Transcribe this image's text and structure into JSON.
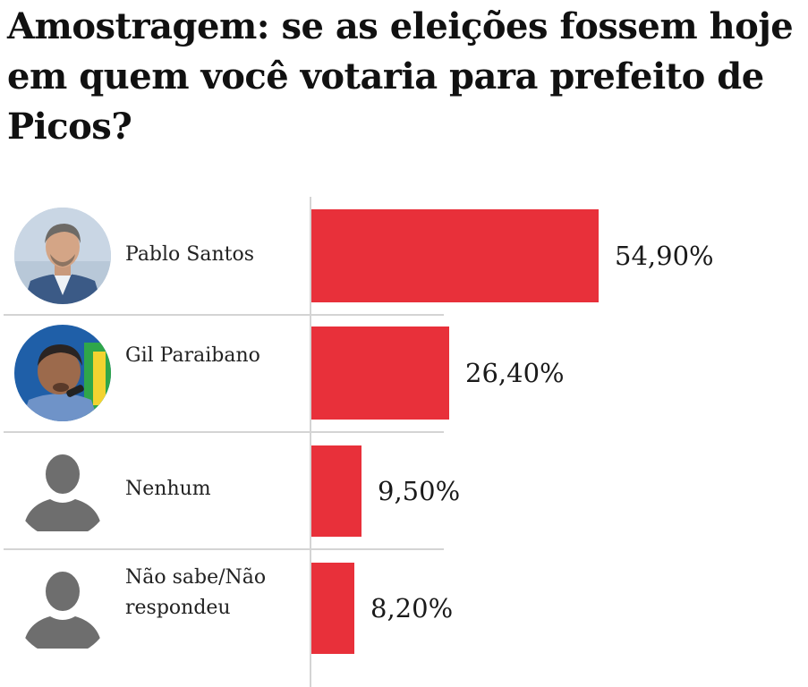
{
  "title": "Amostragem: se as eleições fossem hoje em quem você votaria para prefeito de Picos?",
  "colors": {
    "bar": "#e8303a",
    "divider": "#d4d4d4",
    "placeholder_avatar": "#6e6e6e"
  },
  "rows": [
    {
      "name": "Pablo Santos",
      "value_label": "54,90%",
      "avatar_icon": "candidate-photo-pablo-santos"
    },
    {
      "name": "Gil Paraibano",
      "value_label": "26,40%",
      "avatar_icon": "candidate-photo-gil-paraibano"
    },
    {
      "name": "Nenhum",
      "value_label": "9,50%",
      "avatar_icon": "generic-person-icon"
    },
    {
      "name": "Não sabe/Não respondeu",
      "value_label": "8,20%",
      "avatar_icon": "generic-person-icon"
    }
  ],
  "chart_data": {
    "type": "bar",
    "orientation": "horizontal",
    "title": "Amostragem: se as eleições fossem hoje em quem você votaria para prefeito de Picos?",
    "categories": [
      "Pablo Santos",
      "Gil Paraibano",
      "Nenhum",
      "Não sabe/Não respondeu"
    ],
    "values": [
      54.9,
      26.4,
      9.5,
      8.2
    ],
    "data_labels": [
      "54,90%",
      "26,40%",
      "9,50%",
      "8,20%"
    ],
    "unit": "%",
    "xlim": [
      0,
      100
    ],
    "grid": false,
    "legend": "none"
  }
}
